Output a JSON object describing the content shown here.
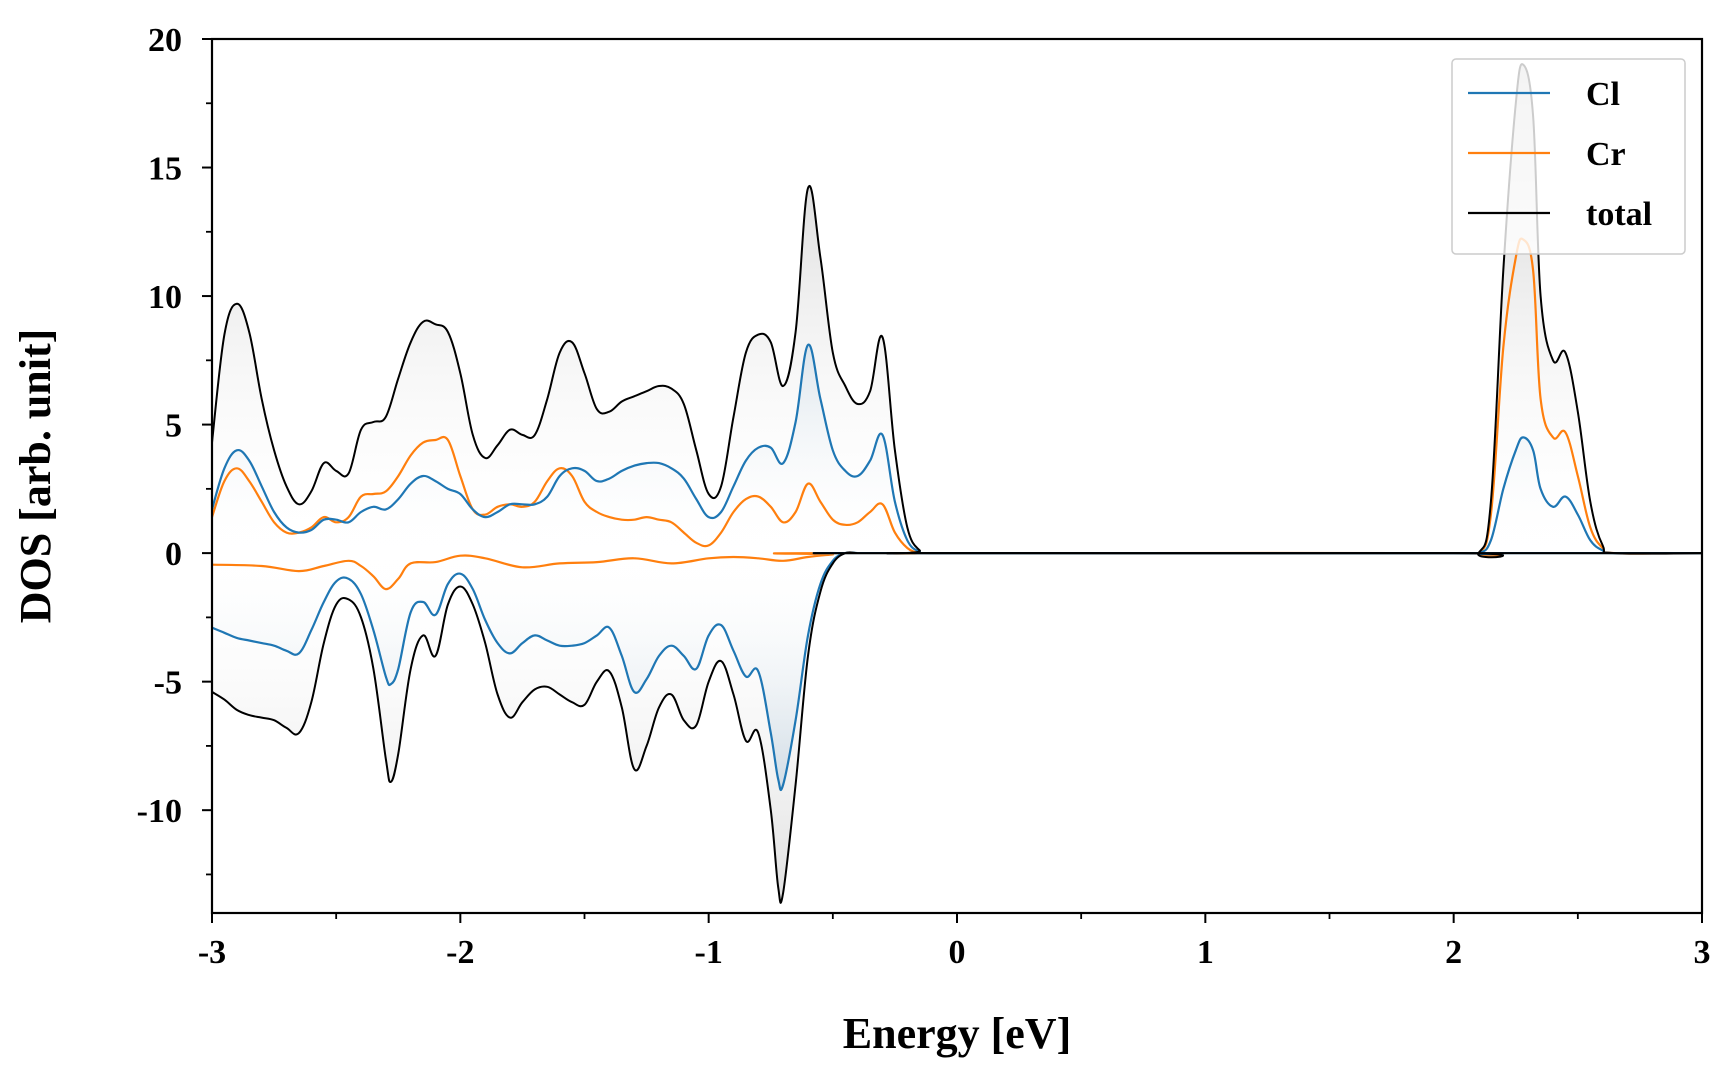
{
  "chart_data": {
    "type": "line",
    "title": "",
    "xlabel": "Energy [eV]",
    "ylabel": "DOS [arb. unit]",
    "xlim": [
      -3,
      3
    ],
    "ylim": [
      -14,
      20
    ],
    "x_ticks": [
      "-3",
      "-2",
      "-1",
      "0",
      "1",
      "2",
      "3"
    ],
    "y_ticks": [
      "-10",
      "-5",
      "0",
      "5",
      "10",
      "15",
      "20"
    ],
    "x_minor_step": 0.5,
    "y_minor_step": 2.5,
    "grid": false,
    "legend_position": "top-right",
    "colors": {
      "Cl": "#1f77b4",
      "Cr": "#ff7f0e",
      "total": "#000000",
      "fill_gray": "#a8a8a8",
      "fill_blue": "#3a78a8"
    },
    "legend": [
      "Cl",
      "Cr",
      "total"
    ],
    "series": [
      {
        "name": "total",
        "role": "spin-up",
        "x": [
          -3.0,
          -2.95,
          -2.9,
          -2.85,
          -2.8,
          -2.75,
          -2.7,
          -2.65,
          -2.6,
          -2.55,
          -2.5,
          -2.45,
          -2.4,
          -2.35,
          -2.3,
          -2.25,
          -2.2,
          -2.15,
          -2.1,
          -2.05,
          -2.0,
          -1.95,
          -1.9,
          -1.85,
          -1.8,
          -1.75,
          -1.7,
          -1.65,
          -1.6,
          -1.55,
          -1.5,
          -1.45,
          -1.4,
          -1.35,
          -1.3,
          -1.25,
          -1.2,
          -1.15,
          -1.1,
          -1.05,
          -1.0,
          -0.95,
          -0.9,
          -0.85,
          -0.8,
          -0.75,
          -0.7,
          -0.65,
          -0.6,
          -0.55,
          -0.5,
          -0.45,
          -0.4,
          -0.35,
          -0.3,
          -0.25,
          -0.2,
          -0.15,
          -0.1,
          2.0,
          2.1,
          2.15,
          2.2,
          2.25,
          2.28,
          2.32,
          2.35,
          2.4,
          2.45,
          2.5,
          2.55,
          2.6,
          2.65,
          3.0
        ],
        "y": [
          4.3,
          8.5,
          9.7,
          8.6,
          6.0,
          4.0,
          2.6,
          1.9,
          2.4,
          3.5,
          3.2,
          3.1,
          4.8,
          5.1,
          5.3,
          6.8,
          8.2,
          9.0,
          8.9,
          8.6,
          7.0,
          4.6,
          3.7,
          4.2,
          4.8,
          4.6,
          4.6,
          6.0,
          7.8,
          8.2,
          7.0,
          5.6,
          5.5,
          5.9,
          6.1,
          6.3,
          6.5,
          6.4,
          5.8,
          4.0,
          2.3,
          2.6,
          5.3,
          7.8,
          8.5,
          8.2,
          6.5,
          8.6,
          14.2,
          11.5,
          7.8,
          6.5,
          5.8,
          6.3,
          8.4,
          4.0,
          1.0,
          0.1,
          0.0,
          0.0,
          0.0,
          2.0,
          11.0,
          17.5,
          19.0,
          17.0,
          10.0,
          7.5,
          7.8,
          5.5,
          2.0,
          0.3,
          0.0,
          0.0
        ]
      },
      {
        "name": "Cl",
        "role": "spin-up",
        "x": [
          -3.0,
          -2.95,
          -2.9,
          -2.85,
          -2.8,
          -2.75,
          -2.7,
          -2.65,
          -2.6,
          -2.55,
          -2.5,
          -2.45,
          -2.4,
          -2.35,
          -2.3,
          -2.25,
          -2.2,
          -2.15,
          -2.1,
          -2.05,
          -2.0,
          -1.95,
          -1.9,
          -1.85,
          -1.8,
          -1.75,
          -1.7,
          -1.65,
          -1.6,
          -1.55,
          -1.5,
          -1.45,
          -1.4,
          -1.35,
          -1.3,
          -1.25,
          -1.2,
          -1.15,
          -1.1,
          -1.05,
          -1.0,
          -0.95,
          -0.9,
          -0.85,
          -0.8,
          -0.75,
          -0.7,
          -0.65,
          -0.6,
          -0.55,
          -0.5,
          -0.45,
          -0.4,
          -0.35,
          -0.3,
          -0.25,
          -0.2,
          -0.15,
          -0.1,
          2.0,
          2.1,
          2.15,
          2.2,
          2.25,
          2.28,
          2.32,
          2.35,
          2.4,
          2.45,
          2.5,
          2.55,
          2.6,
          2.65,
          3.0
        ],
        "y": [
          1.7,
          3.3,
          4.0,
          3.6,
          2.6,
          1.6,
          1.0,
          0.8,
          0.9,
          1.3,
          1.3,
          1.2,
          1.6,
          1.8,
          1.7,
          2.1,
          2.7,
          3.0,
          2.8,
          2.5,
          2.3,
          1.7,
          1.4,
          1.6,
          1.9,
          1.9,
          1.9,
          2.2,
          3.0,
          3.3,
          3.2,
          2.8,
          2.9,
          3.2,
          3.4,
          3.5,
          3.5,
          3.3,
          2.9,
          2.1,
          1.4,
          1.6,
          2.6,
          3.6,
          4.1,
          4.1,
          3.5,
          5.1,
          8.1,
          6.0,
          4.0,
          3.2,
          3.0,
          3.6,
          4.6,
          2.0,
          0.5,
          0.05,
          0.0,
          0.0,
          0.0,
          0.5,
          2.5,
          4.0,
          4.5,
          4.0,
          2.5,
          1.8,
          2.2,
          1.5,
          0.5,
          0.1,
          0.0,
          0.0
        ]
      },
      {
        "name": "Cr",
        "role": "spin-up",
        "x": [
          -3.0,
          -2.95,
          -2.9,
          -2.85,
          -2.8,
          -2.75,
          -2.7,
          -2.65,
          -2.6,
          -2.55,
          -2.5,
          -2.45,
          -2.4,
          -2.35,
          -2.3,
          -2.25,
          -2.2,
          -2.15,
          -2.1,
          -2.05,
          -2.0,
          -1.95,
          -1.9,
          -1.85,
          -1.8,
          -1.75,
          -1.7,
          -1.65,
          -1.6,
          -1.55,
          -1.5,
          -1.45,
          -1.4,
          -1.35,
          -1.3,
          -1.25,
          -1.2,
          -1.15,
          -1.1,
          -1.05,
          -1.0,
          -0.95,
          -0.9,
          -0.85,
          -0.8,
          -0.75,
          -0.7,
          -0.65,
          -0.6,
          -0.55,
          -0.5,
          -0.45,
          -0.4,
          -0.35,
          -0.3,
          -0.25,
          -0.2,
          -0.15,
          -0.1,
          2.0,
          2.1,
          2.15,
          2.2,
          2.25,
          2.28,
          2.32,
          2.35,
          2.4,
          2.45,
          2.5,
          2.55,
          2.6,
          2.65,
          3.0
        ],
        "y": [
          1.4,
          2.8,
          3.3,
          2.8,
          2.0,
          1.2,
          0.8,
          0.8,
          1.0,
          1.4,
          1.2,
          1.4,
          2.2,
          2.3,
          2.4,
          3.0,
          3.8,
          4.3,
          4.4,
          4.4,
          3.0,
          1.7,
          1.5,
          1.8,
          1.9,
          1.8,
          2.0,
          2.8,
          3.3,
          3.0,
          2.0,
          1.6,
          1.4,
          1.3,
          1.3,
          1.4,
          1.3,
          1.2,
          0.8,
          0.4,
          0.3,
          0.8,
          1.6,
          2.1,
          2.2,
          1.8,
          1.2,
          1.6,
          2.7,
          2.0,
          1.3,
          1.1,
          1.2,
          1.6,
          1.9,
          0.8,
          0.2,
          0.0,
          0.0,
          0.0,
          0.0,
          1.5,
          8.0,
          11.5,
          12.2,
          11.0,
          6.0,
          4.5,
          4.7,
          3.0,
          1.0,
          0.2,
          0.0,
          0.0
        ]
      },
      {
        "name": "total",
        "role": "spin-down",
        "x": [
          -3.0,
          -2.95,
          -2.9,
          -2.85,
          -2.8,
          -2.75,
          -2.7,
          -2.65,
          -2.6,
          -2.55,
          -2.5,
          -2.45,
          -2.4,
          -2.35,
          -2.3,
          -2.28,
          -2.25,
          -2.2,
          -2.15,
          -2.1,
          -2.05,
          -2.0,
          -1.95,
          -1.9,
          -1.85,
          -1.8,
          -1.75,
          -1.7,
          -1.65,
          -1.6,
          -1.55,
          -1.5,
          -1.45,
          -1.4,
          -1.35,
          -1.3,
          -1.25,
          -1.2,
          -1.15,
          -1.1,
          -1.05,
          -1.0,
          -0.95,
          -0.9,
          -0.85,
          -0.8,
          -0.75,
          -0.72,
          -0.7,
          -0.65,
          -0.6,
          -0.55,
          -0.5,
          -0.45,
          -0.4,
          -0.35,
          -0.3,
          3.0
        ],
        "y": [
          -5.4,
          -5.7,
          -6.1,
          -6.3,
          -6.4,
          -6.5,
          -6.8,
          -7.0,
          -5.8,
          -3.5,
          -2.0,
          -1.8,
          -2.5,
          -4.5,
          -8.0,
          -8.9,
          -7.8,
          -4.5,
          -3.2,
          -4.0,
          -2.0,
          -1.3,
          -2.0,
          -3.5,
          -5.5,
          -6.4,
          -5.8,
          -5.3,
          -5.2,
          -5.5,
          -5.8,
          -5.9,
          -5.0,
          -4.6,
          -6.0,
          -8.4,
          -7.5,
          -6.0,
          -5.5,
          -6.5,
          -6.7,
          -5.0,
          -4.2,
          -5.5,
          -7.3,
          -7.0,
          -10.0,
          -13.0,
          -13.2,
          -9.0,
          -4.0,
          -1.5,
          -0.4,
          0.0,
          0.0,
          0.0,
          0.0,
          0.0
        ]
      },
      {
        "name": "Cl",
        "role": "spin-down",
        "x": [
          -3.0,
          -2.95,
          -2.9,
          -2.85,
          -2.8,
          -2.75,
          -2.7,
          -2.65,
          -2.6,
          -2.55,
          -2.5,
          -2.45,
          -2.4,
          -2.35,
          -2.3,
          -2.28,
          -2.25,
          -2.2,
          -2.15,
          -2.1,
          -2.05,
          -2.0,
          -1.95,
          -1.9,
          -1.85,
          -1.8,
          -1.75,
          -1.7,
          -1.65,
          -1.6,
          -1.55,
          -1.5,
          -1.45,
          -1.4,
          -1.35,
          -1.3,
          -1.25,
          -1.2,
          -1.15,
          -1.1,
          -1.05,
          -1.0,
          -0.95,
          -0.9,
          -0.85,
          -0.8,
          -0.75,
          -0.72,
          -0.7,
          -0.65,
          -0.6,
          -0.55,
          -0.5,
          -0.45,
          -0.4,
          -0.35,
          -0.3,
          3.0
        ],
        "y": [
          -2.9,
          -3.1,
          -3.3,
          -3.4,
          -3.5,
          -3.6,
          -3.8,
          -3.9,
          -3.0,
          -1.9,
          -1.1,
          -1.0,
          -1.6,
          -3.0,
          -4.8,
          -5.1,
          -4.5,
          -2.3,
          -1.9,
          -2.4,
          -1.2,
          -0.8,
          -1.4,
          -2.6,
          -3.5,
          -3.9,
          -3.5,
          -3.2,
          -3.4,
          -3.6,
          -3.6,
          -3.5,
          -3.2,
          -2.9,
          -4.0,
          -5.4,
          -4.9,
          -4.0,
          -3.6,
          -4.0,
          -4.5,
          -3.2,
          -2.8,
          -3.8,
          -4.8,
          -4.6,
          -7.0,
          -8.8,
          -9.0,
          -6.5,
          -3.2,
          -1.2,
          -0.3,
          0.0,
          0.0,
          0.0,
          0.0,
          0.0
        ]
      },
      {
        "name": "Cr",
        "role": "spin-down",
        "x": [
          -3.0,
          -2.8,
          -2.65,
          -2.55,
          -2.45,
          -2.4,
          -2.35,
          -2.3,
          -2.25,
          -2.2,
          -2.1,
          -2.0,
          -1.9,
          -1.75,
          -1.6,
          -1.45,
          -1.3,
          -1.15,
          -1.0,
          -0.9,
          -0.8,
          -0.7,
          -0.6,
          -0.5,
          -0.45,
          3.0
        ],
        "y": [
          -0.45,
          -0.5,
          -0.7,
          -0.5,
          -0.3,
          -0.5,
          -0.9,
          -1.4,
          -1.0,
          -0.4,
          -0.35,
          -0.1,
          -0.2,
          -0.55,
          -0.4,
          -0.35,
          -0.2,
          -0.4,
          -0.2,
          -0.15,
          -0.2,
          -0.3,
          -0.15,
          -0.05,
          0.0,
          0.0
        ]
      }
    ]
  }
}
